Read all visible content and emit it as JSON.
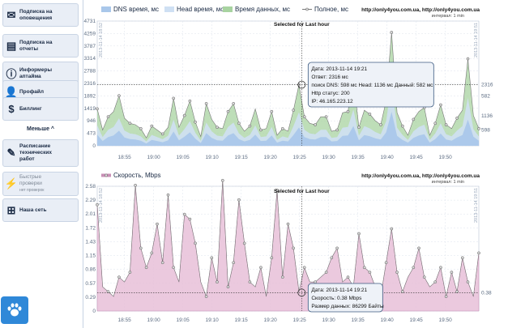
{
  "sidebar": {
    "items": [
      {
        "label": "Подписка на\nоповещения",
        "icon": "envelope-icon",
        "glyph": "✉"
      },
      {
        "label": "Подписка на\nотчеты",
        "icon": "clipboard-icon",
        "glyph": "▤"
      },
      {
        "label": "Информеры\nаптайма",
        "icon": "info-icon",
        "glyph": "ⓘ"
      },
      {
        "label": "Профайл",
        "icon": "user-icon",
        "glyph": "👤"
      },
      {
        "label": "Биллинг",
        "icon": "dollar-icon",
        "glyph": "$"
      }
    ],
    "collapse_label": "Меньше ^",
    "items2": [
      {
        "label": "Расписание\nтехнических\nработ",
        "icon": "wrench-icon",
        "glyph": "✎"
      },
      {
        "label": "Быстрые\nпроверки",
        "sub": "нет проверок",
        "icon": "lightning-icon",
        "glyph": "⚡",
        "disabled": true
      },
      {
        "label": "Наша сеть",
        "icon": "network-icon",
        "glyph": "⊞"
      }
    ]
  },
  "urls": "http://only4you.com.ua, http://only4you.com.ua",
  "interval_note": "интервал: 1 min",
  "selected_label": "Selected for Last hour",
  "colors": {
    "dns": "#a9c7ea",
    "head": "#cfe0f3",
    "data": "#a8d3a0",
    "full": "#8a8a8a",
    "speed": "#e8bfd8"
  },
  "chart_data": [
    {
      "type": "area",
      "legend": [
        "DNS время, мс",
        "Head время, мс",
        "Время данных, мс",
        "Полное, мс"
      ],
      "y_ticks": [
        "4731",
        "4259",
        "3787",
        "3314",
        "2788",
        "2316",
        "1892",
        "1419",
        "946",
        "473",
        "0"
      ],
      "ylim": [
        0,
        4731
      ],
      "x_ticks": [
        "18:55",
        "19:00",
        "19:05",
        "19:10",
        "19:15",
        "19:20",
        "19:25",
        "19:30",
        "19:35",
        "19:40",
        "19:45",
        "19:50"
      ],
      "xlim": [
        0,
        70
      ],
      "right_labels": [
        {
          "v": 2316,
          "t": "2316"
        },
        {
          "v": 1892,
          "t": "582"
        },
        {
          "v": 1136,
          "t": "1136"
        },
        {
          "v": 598,
          "t": "598"
        }
      ],
      "vertical_left": "2013-11-14 18:52",
      "vertical_right": "2013-11-14 19:51",
      "selected_x": 37.5,
      "series": [
        {
          "name": "Полное, мс",
          "values": [
            1400,
            600,
            1100,
            1300,
            1900,
            1050,
            850,
            800,
            650,
            300,
            750,
            600,
            450,
            700,
            1800,
            700,
            1150,
            1700,
            900,
            350,
            1600,
            1000,
            700,
            650,
            1300,
            1600,
            850,
            550,
            750,
            1400,
            600,
            650,
            1300,
            400,
            650,
            550,
            1350,
            2316,
            1100,
            850,
            800,
            1100,
            1100,
            550,
            600,
            1250,
            1300,
            2500,
            700,
            1350,
            1200,
            950,
            800,
            1700,
            4300,
            1250,
            750,
            400,
            1000,
            1300,
            1450,
            400,
            850,
            1550,
            800,
            650,
            1050,
            1350,
            3300,
            1150,
            650
          ]
        }
      ],
      "tooltip": {
        "date": "Дата: 2013-11-14 19:21",
        "answer": "Ответ: 2316 мс",
        "detail": "поиск DNS: 598 мс Head: 1136 мс Данный: 582 мс",
        "http": "Http статус: 200",
        "ip": "IP: 46.165.223.12"
      }
    },
    {
      "type": "area",
      "legend": [
        "Скорость, Mbps"
      ],
      "y_ticks": [
        "2.58",
        "2.29",
        "2.01",
        "1.72",
        "1.43",
        "1.15",
        "0.86",
        "0.57",
        "0.29",
        "0"
      ],
      "ylim": [
        0,
        2.58
      ],
      "x_ticks": [
        "18:55",
        "19:00",
        "19:05",
        "19:10",
        "19:15",
        "19:20",
        "19:25",
        "19:30",
        "19:35",
        "19:40",
        "19:45",
        "19:50"
      ],
      "xlim": [
        0,
        70
      ],
      "right_labels": [
        {
          "v": 0.38,
          "t": "0.38"
        }
      ],
      "vertical_left": "2013-11-14 18:52",
      "vertical_right": "2013-11-14 19:51",
      "selected_x": 37.5,
      "series": [
        {
          "name": "Скорость, Mbps",
          "values": [
            2.2,
            0.5,
            0.4,
            0.3,
            0.7,
            0.6,
            0.8,
            2.6,
            1.3,
            0.9,
            1.2,
            1.8,
            1.0,
            2.4,
            0.9,
            0.6,
            2.0,
            1.9,
            1.4,
            0.6,
            0.3,
            1.1,
            0.6,
            2.7,
            0.5,
            1.0,
            2.3,
            1.4,
            0.6,
            0.5,
            0.9,
            0.3,
            1.1,
            2.5,
            0.7,
            1.8,
            1.3,
            0.4,
            0.9,
            0.6,
            0.6,
            0.7,
            0.8,
            1.1,
            1.3,
            0.6,
            0.7,
            0.5,
            1.6,
            0.9,
            0.8,
            0.5,
            0.3,
            1.0,
            1.7,
            0.8,
            0.4,
            0.7,
            0.9,
            1.3,
            0.7,
            0.5,
            0.6,
            0.9,
            0.3,
            0.8,
            0.4,
            1.1,
            0.6,
            0.3,
            1.2
          ]
        }
      ],
      "tooltip": {
        "date": "Дата: 2013-11-14 19:21",
        "speed": "Скорость: 0.38 Mbps",
        "size": "Размер данных: 86299 Байты"
      }
    }
  ]
}
